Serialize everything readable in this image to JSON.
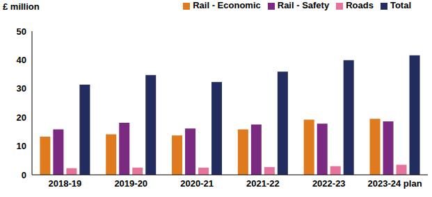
{
  "chart_data": {
    "type": "bar",
    "y_label": "£ million",
    "categories": [
      "2018-19",
      "2019-20",
      "2020-21",
      "2021-22",
      "2022-23",
      "2023-24 plan"
    ],
    "series": [
      {
        "name": "Rail - Economic",
        "color": "#E07A1F",
        "values": [
          13.3,
          14.1,
          13.7,
          15.8,
          19.2,
          19.5
        ]
      },
      {
        "name": "Rail - Safety",
        "color": "#7A2A80",
        "values": [
          15.8,
          18.1,
          16.1,
          17.5,
          17.8,
          18.6
        ]
      },
      {
        "name": "Roads",
        "color": "#E5739B",
        "values": [
          2.3,
          2.5,
          2.5,
          2.7,
          3.0,
          3.5
        ]
      },
      {
        "name": "Total",
        "color": "#222C5E",
        "values": [
          31.4,
          34.7,
          32.3,
          35.9,
          39.9,
          41.6
        ]
      }
    ],
    "ylim": [
      0,
      50
    ],
    "yticks": [
      0,
      10,
      20,
      30,
      40,
      50
    ],
    "grid": false,
    "legend": "top"
  }
}
